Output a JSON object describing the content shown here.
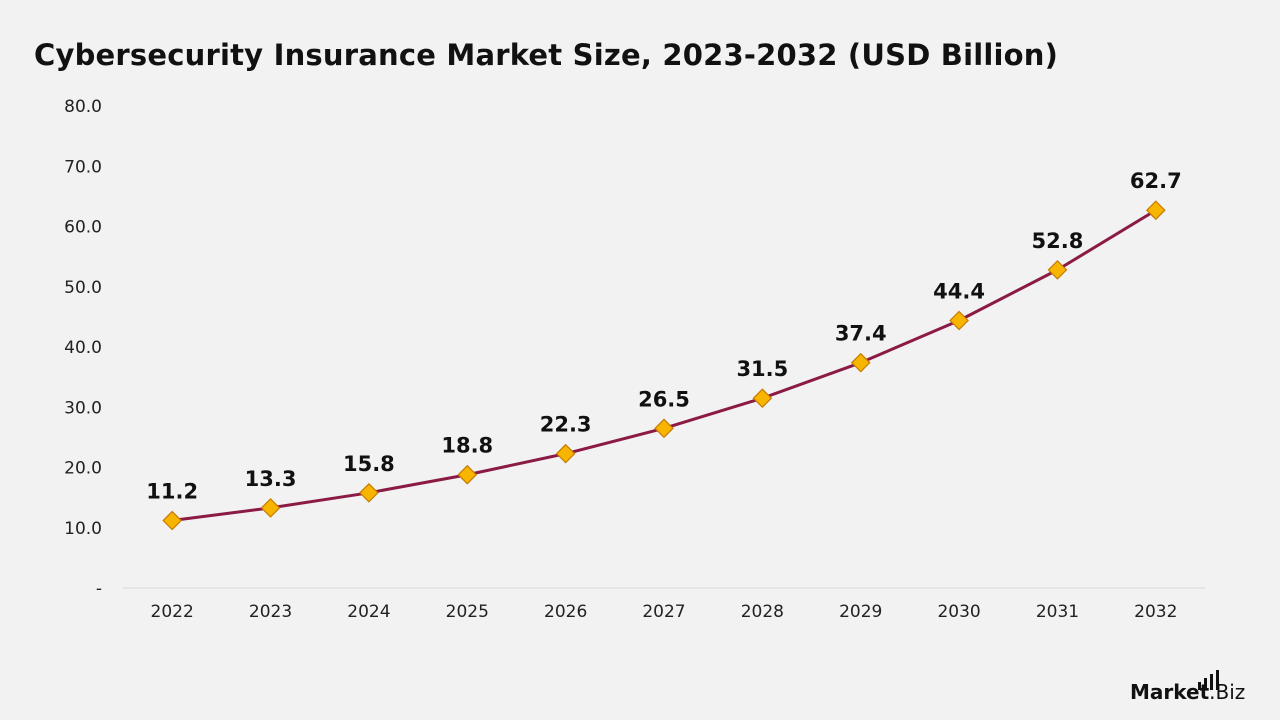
{
  "title": "Cybersecurity Insurance Market Size, 2023-2032 (USD Billion)",
  "brand": {
    "name_bold": "Market",
    "name_rest": ".Biz",
    "icon": "bar-chart-icon"
  },
  "colors": {
    "line": "#8b1a44",
    "marker_fill": "#f7b500",
    "marker_stroke": "#c77a00",
    "axis": "#d9d9d9",
    "text": "#111111",
    "background": "#f2f2f2"
  },
  "chart_data": {
    "type": "line",
    "title": "Cybersecurity Insurance Market Size, 2023-2032 (USD Billion)",
    "xlabel": "",
    "ylabel": "",
    "categories": [
      "2022",
      "2023",
      "2024",
      "2025",
      "2026",
      "2027",
      "2028",
      "2029",
      "2030",
      "2031",
      "2032"
    ],
    "series": [
      {
        "values": [
          11.2,
          13.3,
          15.8,
          18.8,
          22.3,
          26.5,
          31.5,
          37.4,
          44.4,
          52.8,
          62.7
        ]
      }
    ],
    "data_labels": [
      "11.2",
      "13.3",
      "15.8",
      "18.8",
      "22.3",
      "26.5",
      "31.5",
      "37.4",
      "44.4",
      "52.8",
      "62.7"
    ],
    "ylim": [
      0,
      80
    ],
    "yticks": [
      0,
      10,
      20,
      30,
      40,
      50,
      60,
      70,
      80
    ],
    "ytick_labels": [
      "-",
      "10.0",
      "20.0",
      "30.0",
      "40.0",
      "50.0",
      "60.0",
      "70.0",
      "80.0"
    ],
    "marker": "diamond",
    "grid": false,
    "legend": "none"
  }
}
